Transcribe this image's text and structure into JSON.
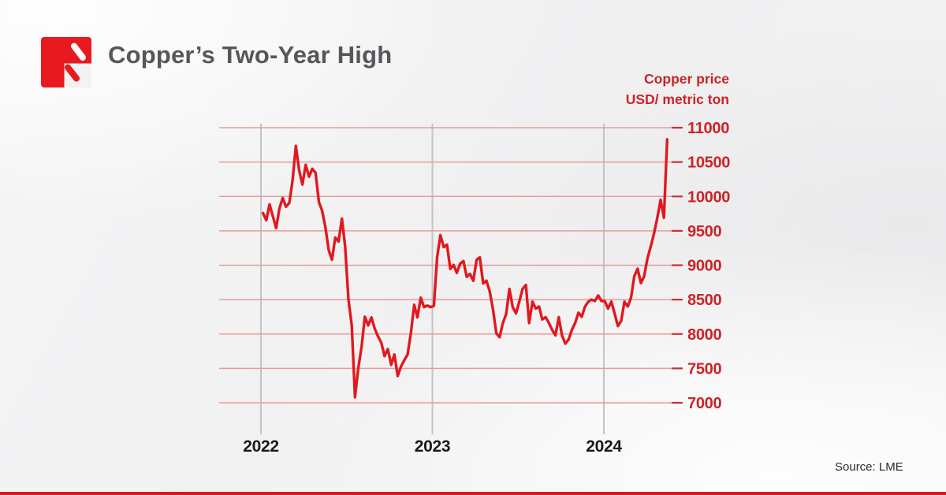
{
  "header": {
    "title": "Copper’s Two-Year High"
  },
  "axis_header": {
    "line1": "Copper price",
    "line2": "USD/ metric ton"
  },
  "source": {
    "label": "Source: LME"
  },
  "colors": {
    "line_red": "#e0191f",
    "label_red": "#cd2227",
    "grid_h": "#e89b99",
    "tick_red": "#cb2f34",
    "grid_v": "#c3c3c4",
    "label_dark": "#19191b",
    "title_gray": "#56575a",
    "logo_red": "#e8191f",
    "bottom_bar": "#d21c22"
  },
  "chart_data": {
    "type": "line",
    "title": "Copper’s Two-Year High",
    "ylabel": "Copper price USD/ metric ton",
    "xlabel": "",
    "x_ticks": [
      2022,
      2023,
      2024
    ],
    "y_ticks": [
      11000,
      10500,
      10000,
      9500,
      9000,
      8500,
      8000,
      7500,
      7000
    ],
    "ylim": [
      7000,
      11000
    ],
    "xlim_years": [
      2021.76,
      2024.4
    ],
    "grid": "on",
    "legend_position": "none",
    "series": [
      {
        "name": "LME copper price (USD/metric ton), weekly",
        "start_year": 2022.012,
        "interval_days": 7,
        "values": [
          9758,
          9655,
          9885,
          9713,
          9540,
          9828,
          9977,
          9851,
          9908,
          10230,
          10735,
          10380,
          10172,
          10460,
          10287,
          10402,
          10345,
          9920,
          9793,
          9552,
          9218,
          9080,
          9402,
          9345,
          9678,
          9275,
          8505,
          8126,
          7080,
          7506,
          7816,
          8252,
          8126,
          8241,
          8080,
          7965,
          7873,
          7678,
          7781,
          7551,
          7701,
          7390,
          7529,
          7620,
          7701,
          8011,
          8425,
          8241,
          8528,
          8390,
          8413,
          8390,
          8410,
          9118,
          9437,
          9264,
          9299,
          8946,
          9004,
          8889,
          9023,
          9061,
          8831,
          8873,
          8774,
          9080,
          9115,
          8736,
          8774,
          8621,
          8356,
          8011,
          7954,
          8160,
          8290,
          8655,
          8390,
          8300,
          8470,
          8655,
          8713,
          8160,
          8470,
          8370,
          8400,
          8210,
          8245,
          8160,
          8060,
          7980,
          8245,
          7980,
          7860,
          7920,
          8060,
          8160,
          8310,
          8250,
          8400,
          8470,
          8500,
          8480,
          8560,
          8480,
          8480,
          8370,
          8470,
          8300,
          8115,
          8190,
          8470,
          8400,
          8530,
          8840,
          8950,
          8740,
          8840,
          9100,
          9275,
          9460,
          9690,
          9950,
          9690,
          10830
        ]
      }
    ]
  }
}
